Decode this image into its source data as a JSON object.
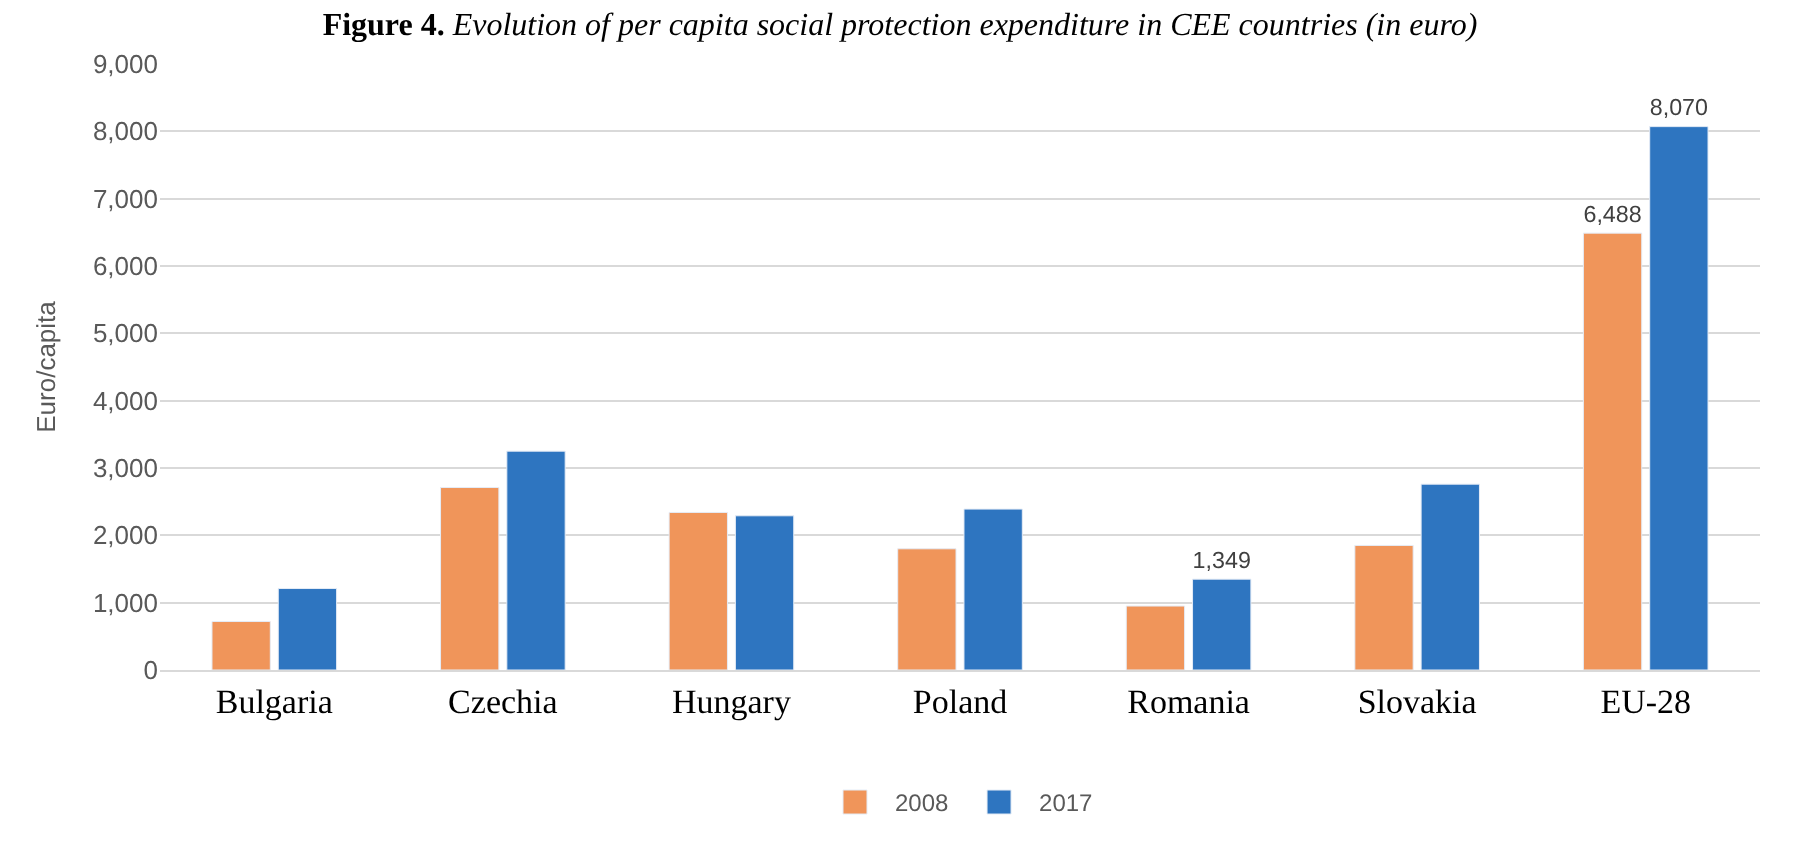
{
  "chart_data": {
    "type": "bar",
    "title": "Figure 4. Evolution of per capita social protection expenditure in CEE countries (in euro)",
    "ylabel": "Euro/capita",
    "categories": [
      "Bulgaria",
      "Czechia",
      "Hungary",
      "Poland",
      "Romania",
      "Slovakia",
      "EU-28"
    ],
    "series": [
      {
        "name": "2008",
        "color": "#f0955a",
        "values": [
          720,
          2710,
          2340,
          1800,
          950,
          1850,
          6488
        ],
        "value_labels": [
          null,
          null,
          null,
          null,
          null,
          null,
          "6,488"
        ]
      },
      {
        "name": "2017",
        "color": "#2e75c0",
        "values": [
          1210,
          3250,
          2290,
          2390,
          1349,
          2760,
          8070
        ],
        "value_labels": [
          null,
          null,
          null,
          null,
          "1,349",
          null,
          "8,070"
        ]
      }
    ],
    "ylim": [
      0,
      9000
    ],
    "yticks": [
      {
        "value": 0,
        "label": "0"
      },
      {
        "value": 1000,
        "label": "1,000"
      },
      {
        "value": 2000,
        "label": "2,000"
      },
      {
        "value": 3000,
        "label": "3,000"
      },
      {
        "value": 4000,
        "label": "4,000"
      },
      {
        "value": 5000,
        "label": "5,000"
      },
      {
        "value": 6000,
        "label": "6,000"
      },
      {
        "value": 7000,
        "label": "7,000"
      },
      {
        "value": 8000,
        "label": "8,000"
      },
      {
        "value": 9000,
        "label": "9,000"
      }
    ],
    "grid": "y",
    "legend": "bottom"
  }
}
